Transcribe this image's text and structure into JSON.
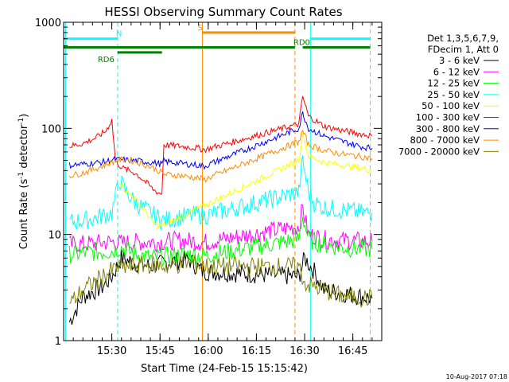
{
  "chart_data": {
    "type": "line",
    "title": "HESSI Observing Summary Count Rates",
    "xlabel": "Start Time (24-Feb-15 15:15:42)",
    "ylabel": "Count Rate (s",
    "ylabel_sup1": "-1",
    "ylabel_mid": " detector",
    "ylabel_sup2": "-1",
    "ylabel_end": ")",
    "y_scale": "log",
    "ylim": [
      1,
      1000
    ],
    "xlim_minutes": [
      15.25,
      16.9
    ],
    "x_ticks": [
      {
        "t": 15.5,
        "label": "15:30"
      },
      {
        "t": 15.75,
        "label": "15:45"
      },
      {
        "t": 16.0,
        "label": "16:00"
      },
      {
        "t": 16.25,
        "label": "16:15"
      },
      {
        "t": 16.5,
        "label": "16:30"
      },
      {
        "t": 16.75,
        "label": "16:45"
      }
    ],
    "y_ticks": [
      {
        "v": 1,
        "label": "1"
      },
      {
        "v": 10,
        "label": "10"
      },
      {
        "v": 100,
        "label": "100"
      },
      {
        "v": 1000,
        "label": "1000"
      }
    ],
    "legend": {
      "header1": "Det 1,3,5,6,7,9,",
      "header2": "FDecim 1, Att 0",
      "placement": "right"
    },
    "series": [
      {
        "name": "3 - 6 keV",
        "color": "#000000",
        "points": [
          [
            15.28,
            1.5
          ],
          [
            15.35,
            2.6
          ],
          [
            15.45,
            3.2
          ],
          [
            15.5,
            4.0
          ],
          [
            15.55,
            6.0
          ],
          [
            15.6,
            5.5
          ],
          [
            15.7,
            5.0
          ],
          [
            15.8,
            5.5
          ],
          [
            15.9,
            5.8
          ],
          [
            15.97,
            4.5
          ],
          [
            16.47,
            4.0
          ],
          [
            16.5,
            6.0
          ],
          [
            16.55,
            4.5
          ],
          [
            16.6,
            3.0
          ],
          [
            16.7,
            2.8
          ],
          [
            16.85,
            2.5
          ]
        ]
      },
      {
        "name": "6 - 12 keV",
        "color": "#ff00ff",
        "points": [
          [
            15.28,
            8.0
          ],
          [
            15.4,
            8.2
          ],
          [
            15.5,
            8.5
          ],
          [
            15.55,
            8.3
          ],
          [
            15.65,
            8.5
          ],
          [
            15.75,
            8.5
          ],
          [
            15.85,
            8.8
          ],
          [
            15.95,
            8.6
          ],
          [
            15.98,
            8.4
          ],
          [
            16.47,
            12.0
          ],
          [
            16.49,
            18.0
          ],
          [
            16.52,
            10.0
          ],
          [
            16.6,
            9.0
          ],
          [
            16.7,
            8.8
          ],
          [
            16.85,
            8.6
          ]
        ]
      },
      {
        "name": "12 - 25 keV",
        "color": "#00ff00",
        "points": [
          [
            15.28,
            6.5
          ],
          [
            15.4,
            6.8
          ],
          [
            15.5,
            7.0
          ],
          [
            15.55,
            7.5
          ],
          [
            15.6,
            6.8
          ],
          [
            15.7,
            6.0
          ],
          [
            15.8,
            6.3
          ],
          [
            15.9,
            6.5
          ],
          [
            15.98,
            6.3
          ],
          [
            16.47,
            9.0
          ],
          [
            16.49,
            15.0
          ],
          [
            16.52,
            9.0
          ],
          [
            16.6,
            8.0
          ],
          [
            16.7,
            7.5
          ],
          [
            16.85,
            7.3
          ]
        ]
      },
      {
        "name": "25 - 50 keV",
        "color": "#00ffff",
        "points": [
          [
            15.28,
            13.0
          ],
          [
            15.4,
            14.0
          ],
          [
            15.5,
            16.0
          ],
          [
            15.54,
            33.0
          ],
          [
            15.57,
            26.0
          ],
          [
            15.62,
            20.0
          ],
          [
            15.7,
            16.0
          ],
          [
            15.75,
            14.0
          ],
          [
            15.76,
            13.5
          ],
          [
            15.85,
            14.5
          ],
          [
            15.95,
            15.5
          ],
          [
            15.98,
            15.0
          ],
          [
            16.47,
            25.0
          ],
          [
            16.49,
            50.0
          ],
          [
            16.52,
            25.0
          ],
          [
            16.55,
            20.0
          ],
          [
            16.6,
            18.0
          ],
          [
            16.7,
            17.0
          ],
          [
            16.8,
            16.0
          ],
          [
            16.85,
            16.0
          ]
        ]
      },
      {
        "name": "50 - 100 keV",
        "color": "#ffff00",
        "points": [
          [
            15.54,
            32.0
          ],
          [
            15.57,
            26.0
          ],
          [
            15.62,
            22.0
          ],
          [
            15.67,
            17.0
          ],
          [
            15.72,
            12.5
          ],
          [
            15.76,
            12.0
          ],
          [
            16.47,
            50.0
          ],
          [
            16.49,
            90.0
          ],
          [
            16.52,
            55.0
          ],
          [
            16.6,
            48.0
          ],
          [
            16.7,
            45.0
          ],
          [
            16.8,
            42.0
          ],
          [
            16.85,
            40.0
          ]
        ]
      },
      {
        "name": "100 - 300 keV",
        "color": "#ff0000",
        "points": [
          [
            15.28,
            68.0
          ],
          [
            15.35,
            72.0
          ],
          [
            15.42,
            82.0
          ],
          [
            15.47,
            95.0
          ],
          [
            15.5,
            120.0
          ],
          [
            15.52,
            48.0
          ],
          [
            15.56,
            42.0
          ],
          [
            15.62,
            38.0
          ],
          [
            15.67,
            32.0
          ],
          [
            15.72,
            26.0
          ],
          [
            15.76,
            24.0
          ],
          [
            15.77,
            70.0
          ],
          [
            15.85,
            68.0
          ],
          [
            15.95,
            65.0
          ],
          [
            15.98,
            63.0
          ],
          [
            16.47,
            110.0
          ],
          [
            16.49,
            200.0
          ],
          [
            16.52,
            130.0
          ],
          [
            16.6,
            105.0
          ],
          [
            16.7,
            95.0
          ],
          [
            16.8,
            88.0
          ],
          [
            16.85,
            85.0
          ]
        ]
      },
      {
        "name": "300 - 800 keV",
        "color": "#0000ff",
        "points": [
          [
            15.28,
            45.0
          ],
          [
            15.35,
            46.0
          ],
          [
            15.45,
            48.0
          ],
          [
            15.52,
            51.0
          ],
          [
            15.6,
            50.0
          ],
          [
            15.7,
            48.0
          ],
          [
            15.76,
            46.0
          ],
          [
            15.77,
            49.0
          ],
          [
            15.85,
            47.0
          ],
          [
            15.95,
            45.0
          ],
          [
            15.98,
            44.0
          ],
          [
            16.47,
            100.0
          ],
          [
            16.49,
            140.0
          ],
          [
            16.52,
            100.0
          ],
          [
            16.6,
            85.0
          ],
          [
            16.7,
            75.0
          ],
          [
            16.8,
            67.0
          ],
          [
            16.85,
            65.0
          ]
        ]
      },
      {
        "name": "800 - 7000 keV",
        "color": "#ff8c00",
        "points": [
          [
            15.28,
            36.0
          ],
          [
            15.35,
            38.0
          ],
          [
            15.45,
            44.0
          ],
          [
            15.52,
            50.0
          ],
          [
            15.58,
            51.0
          ],
          [
            15.65,
            47.0
          ],
          [
            15.72,
            42.0
          ],
          [
            15.76,
            38.0
          ],
          [
            15.77,
            37.0
          ],
          [
            15.85,
            36.0
          ],
          [
            15.95,
            34.0
          ],
          [
            15.98,
            33.0
          ],
          [
            16.47,
            75.0
          ],
          [
            16.49,
            95.0
          ],
          [
            16.52,
            70.0
          ],
          [
            16.6,
            62.0
          ],
          [
            16.7,
            57.0
          ],
          [
            16.8,
            54.0
          ],
          [
            16.85,
            52.0
          ]
        ]
      },
      {
        "name": "7000 - 20000 keV",
        "color": "#808000",
        "points": [
          [
            15.28,
            2.2
          ],
          [
            15.35,
            3.0
          ],
          [
            15.45,
            4.0
          ],
          [
            15.52,
            4.8
          ],
          [
            15.6,
            5.0
          ],
          [
            15.7,
            5.2
          ],
          [
            15.8,
            5.0
          ],
          [
            15.9,
            5.5
          ],
          [
            15.98,
            5.0
          ],
          [
            16.47,
            5.0
          ],
          [
            16.5,
            3.5
          ],
          [
            16.55,
            3.2
          ],
          [
            16.6,
            3.0
          ],
          [
            16.7,
            2.6
          ],
          [
            16.85,
            2.5
          ]
        ]
      }
    ],
    "state_bars": [
      {
        "label": "N",
        "color": "#00ffff",
        "level": 700,
        "segments": [
          [
            15.25,
            15.53
          ],
          [
            16.53,
            16.84
          ]
        ]
      },
      {
        "label": "RD0",
        "color": "#008000",
        "level": 580,
        "segments": [
          [
            15.25,
            16.45
          ],
          [
            16.49,
            16.84
          ]
        ]
      },
      {
        "label": "RD6",
        "color": "#008000",
        "level": 520,
        "segments": [
          [
            15.53,
            15.76
          ]
        ]
      },
      {
        "label": "S",
        "color": "#ff8c00",
        "level": 800,
        "segments": [
          [
            15.97,
            16.45
          ]
        ]
      }
    ],
    "vlines": [
      {
        "t": 15.26,
        "color": "#00ffff",
        "style": "solid"
      },
      {
        "t": 15.53,
        "color": "#00ffff",
        "style": "dashed"
      },
      {
        "t": 15.97,
        "color": "#ff8c00",
        "style": "solid"
      },
      {
        "t": 16.45,
        "color": "#ff8c00",
        "style": "dashed"
      },
      {
        "t": 16.53,
        "color": "#00ffff",
        "style": "solid"
      },
      {
        "t": 16.84,
        "color": "#00ffff",
        "style": "dashed"
      }
    ]
  },
  "timestamp": "10-Aug-2017 07:18"
}
